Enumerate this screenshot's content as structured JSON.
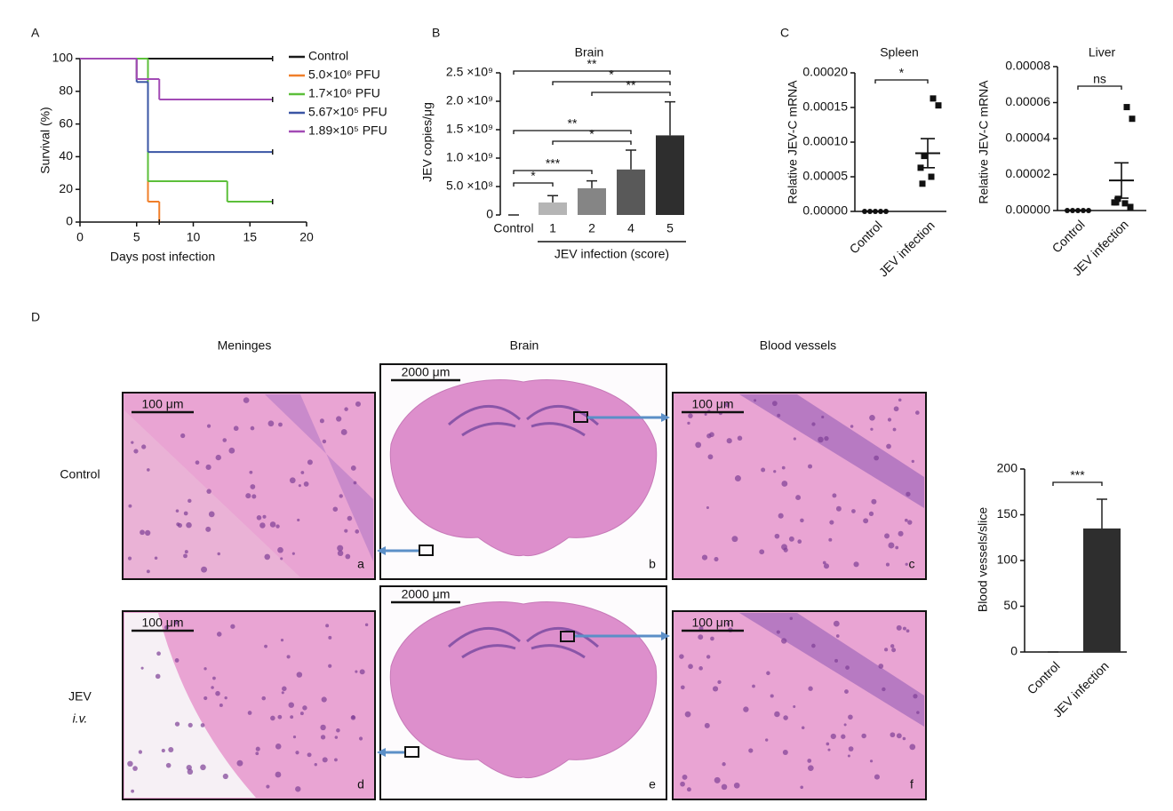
{
  "panel_labels": [
    "A",
    "B",
    "C",
    "D"
  ],
  "chart_data": [
    {
      "type": "line",
      "step": true,
      "ylabel": "Survival (%)",
      "xlabel": "Days post infection",
      "xlim": [
        0,
        20
      ],
      "xticks": [
        0,
        5,
        10,
        15,
        20
      ],
      "ylim": [
        0,
        100
      ],
      "yticks": [
        0,
        20,
        40,
        60,
        80,
        100
      ],
      "series": [
        {
          "name": "Control",
          "color": "#1a1a1a",
          "x": [
            0,
            17
          ],
          "values": [
            100,
            100
          ]
        },
        {
          "name": "5.0×10⁶ PFU",
          "color": "#f07f2a",
          "x": [
            0,
            5,
            6,
            7
          ],
          "values": [
            100,
            87.5,
            12.5,
            0
          ]
        },
        {
          "name": "1.7×10⁶ PFU",
          "color": "#5cbf3a",
          "x": [
            0,
            6,
            13,
            17
          ],
          "values": [
            100,
            25,
            12.5,
            12.5
          ]
        },
        {
          "name": "5.67×10⁵ PFU",
          "color": "#3a55a4",
          "x": [
            0,
            5,
            6,
            17
          ],
          "values": [
            100,
            85.7,
            42.9,
            42.9
          ]
        },
        {
          "name": "1.89×10⁵ PFU",
          "color": "#a24bb5",
          "x": [
            0,
            5,
            7,
            17
          ],
          "values": [
            100,
            87.5,
            75,
            75
          ]
        }
      ]
    },
    {
      "type": "bar",
      "title": "Brain",
      "ylabel": "JEV copies/μg",
      "xlabel": "JEV infection (score)",
      "categories": [
        "Control",
        "1",
        "2",
        "4",
        "5"
      ],
      "values": [
        0,
        220000000,
        470000000,
        800000000,
        1400000000
      ],
      "errors": [
        0,
        120000000,
        130000000,
        340000000,
        590000000
      ],
      "colors": [
        "#ffffff",
        "#b5b5b5",
        "#858585",
        "#595959",
        "#2e2e2e"
      ],
      "ylim": [
        0,
        2500000000
      ],
      "yticks": [
        0,
        {
          "value": 500000000,
          "label": "5.0 ×10⁸"
        },
        {
          "value": 1000000000,
          "label": "1.0 ×10⁹"
        },
        {
          "value": 1500000000,
          "label": "1.5 ×10⁹"
        },
        {
          "value": 2000000000,
          "label": "2.0 ×10⁹"
        },
        {
          "value": 2500000000,
          "label": "2.5 ×10⁹"
        }
      ],
      "significance": [
        {
          "between": [
            "Control",
            "5"
          ],
          "label": "**"
        },
        {
          "between": [
            "1",
            "5"
          ],
          "label": "*"
        },
        {
          "between": [
            "2",
            "5"
          ],
          "label": "**"
        },
        {
          "between": [
            "Control",
            "4"
          ],
          "label": "**"
        },
        {
          "between": [
            "1",
            "4"
          ],
          "label": "*"
        },
        {
          "between": [
            "Control",
            "2"
          ],
          "label": "***"
        },
        {
          "between": [
            "Control",
            "1"
          ],
          "label": "*"
        }
      ]
    },
    {
      "type": "scatter",
      "title": "Spleen",
      "ylabel": "Relative JEV-C mRNA",
      "categories": [
        "Control",
        "JEV infection"
      ],
      "values": [
        [
          0,
          0,
          0,
          0,
          0
        ],
        [
          0.000163,
          0.000153,
          8e-05,
          6.3e-05,
          5e-05,
          4e-05
        ]
      ],
      "mean_values": [
        0,
        8.4e-05
      ],
      "errors": [
        0,
        2.1e-05
      ],
      "ylim": [
        0,
        0.0002
      ],
      "yticks": [
        {
          "value": 0,
          "label": "0.00000"
        },
        {
          "value": 5e-05,
          "label": "0.00005"
        },
        {
          "value": 0.0001,
          "label": "0.00010"
        },
        {
          "value": 0.00015,
          "label": "0.00015"
        },
        {
          "value": 0.0002,
          "label": "0.00020"
        }
      ],
      "significance": [
        {
          "between": [
            "Control",
            "JEV infection"
          ],
          "label": "*"
        }
      ]
    },
    {
      "type": "scatter",
      "title": "Liver",
      "ylabel": "Relative JEV-C mRNA",
      "categories": [
        "Control",
        "JEV infection"
      ],
      "values": [
        [
          0,
          0,
          0,
          0,
          0
        ],
        [
          5.75e-05,
          5.1e-05,
          6.5e-06,
          4.5e-06,
          4e-06,
          4.5e-06,
          2e-06
        ]
      ],
      "mean_values": [
        0,
        1.67e-05
      ],
      "errors": [
        0,
        9.8e-06
      ],
      "ylim": [
        0,
        8e-05
      ],
      "yticks": [
        {
          "value": 0,
          "label": "0.00000"
        },
        {
          "value": 2e-05,
          "label": "0.00002"
        },
        {
          "value": 4e-05,
          "label": "0.00004"
        },
        {
          "value": 6e-05,
          "label": "0.00006"
        },
        {
          "value": 8e-05,
          "label": "0.00008"
        }
      ],
      "significance": [
        {
          "between": [
            "Control",
            "JEV infection"
          ],
          "label": "ns"
        }
      ]
    },
    {
      "type": "bar",
      "ylabel": "Blood vessels/slice",
      "categories": [
        "Control",
        "JEV infection"
      ],
      "values": [
        0,
        135
      ],
      "errors": [
        0,
        32
      ],
      "colors": [
        "#2e2e2e",
        "#2e2e2e"
      ],
      "ylim": [
        0,
        200
      ],
      "yticks": [
        0,
        50,
        100,
        150,
        200
      ],
      "significance": [
        {
          "between": [
            "Control",
            "JEV infection"
          ],
          "label": "***"
        }
      ]
    }
  ],
  "panel_d": {
    "columns": [
      "Meninges",
      "Brain",
      "Blood vessels"
    ],
    "rows": [
      "Control",
      "JEV"
    ],
    "row_sublabel": "i.v.",
    "images": [
      {
        "letter": "a",
        "scale_bar": "100 μm"
      },
      {
        "letter": "b",
        "scale_bar": "2000 μm"
      },
      {
        "letter": "c",
        "scale_bar": "100 μm"
      },
      {
        "letter": "d",
        "scale_bar": "100 μm"
      },
      {
        "letter": "e",
        "scale_bar": "2000 μm"
      },
      {
        "letter": "f",
        "scale_bar": "100 μm"
      }
    ]
  }
}
